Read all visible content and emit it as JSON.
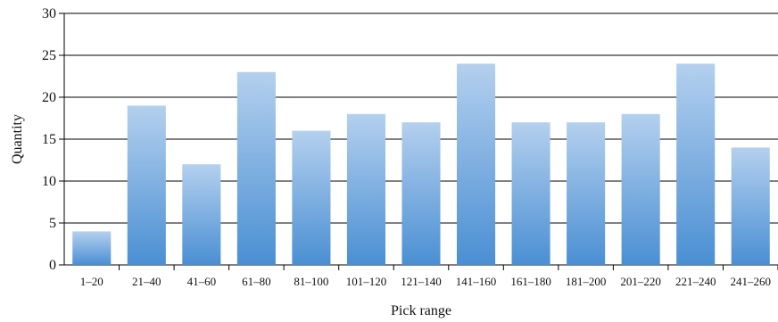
{
  "chart_data": {
    "type": "bar",
    "categories": [
      "1–20",
      "21–40",
      "41–60",
      "61–80",
      "81–100",
      "101–120",
      "121–140",
      "141–160",
      "161–180",
      "181–200",
      "201–220",
      "221–240",
      "241–260"
    ],
    "values": [
      4,
      19,
      12,
      23,
      16,
      18,
      17,
      24,
      17,
      17,
      18,
      24,
      14
    ],
    "xlabel": "Pick range",
    "ylabel": "Quantity",
    "ylim": [
      0,
      30
    ],
    "yticks": [
      "0",
      "5",
      "10",
      "15",
      "20",
      "25",
      "30"
    ],
    "grid": true,
    "colors": {
      "bar_top": "#b4d0ee",
      "bar_bottom": "#4a8fd3",
      "grid": "#000000"
    }
  }
}
